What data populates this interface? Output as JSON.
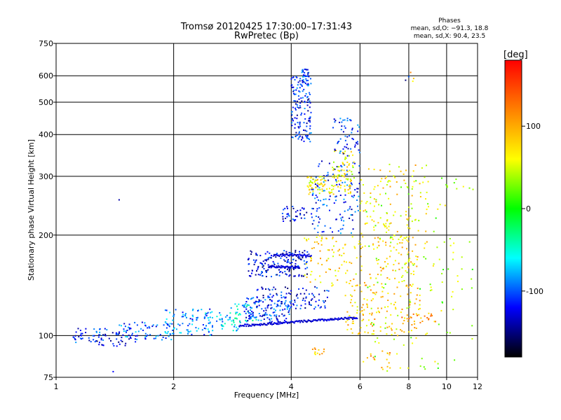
{
  "chart_data": {
    "type": "scatter",
    "title": "Tromsø 20120425 17:30:00–17:31:43",
    "subtitle": "RwPretec (Bp)",
    "xlabel": "Frequency [MHz]",
    "ylabel": "Stationary phase Virtual Height [km]",
    "x_scale": "log",
    "y_scale": "log",
    "xlim": [
      1,
      12
    ],
    "ylim": [
      75,
      750
    ],
    "grid": true,
    "x_ticks": [
      1,
      2,
      4,
      6,
      8,
      10,
      12
    ],
    "y_ticks": [
      75,
      100,
      200,
      300,
      400,
      500,
      600,
      750
    ],
    "stats_title": "Phases",
    "stats": [
      "mean, sd,O:  −91.3, 18.8",
      "mean, sd,X:  90.4, 23.5"
    ],
    "colorbar": {
      "label": "[deg]",
      "range": [
        -180,
        180
      ],
      "ticks": [
        100,
        0,
        -100
      ],
      "stops": [
        "#ff0000",
        "#ff8000",
        "#ffff00",
        "#00ff00",
        "#00ffff",
        "#0000ff",
        "#000000"
      ]
    },
    "clusters": [
      {
        "f": [
          0.97,
          1.0
        ],
        "h": [
          94,
          99
        ],
        "phase": -70,
        "n": 3
      },
      {
        "f": [
          1.1,
          1.35
        ],
        "h": [
          95,
          105
        ],
        "phase": -110,
        "n": 40
      },
      {
        "f": [
          1.25,
          1.6
        ],
        "h": [
          93,
          103
        ],
        "phase": -130,
        "n": 35
      },
      {
        "f": [
          1.4,
          2.0
        ],
        "h": [
          97,
          110
        ],
        "phase": -100,
        "n": 70
      },
      {
        "f": [
          1.9,
          2.5
        ],
        "h": [
          100,
          120
        ],
        "phase": -95,
        "n": 80
      },
      {
        "f": [
          2.4,
          3.0
        ],
        "h": [
          103,
          118
        ],
        "phase": -70,
        "n": 60
      },
      {
        "f": [
          2.8,
          3.3
        ],
        "h": [
          108,
          125
        ],
        "phase": -60,
        "n": 30
      },
      {
        "f": [
          3.0,
          4.0
        ],
        "h": [
          110,
          130
        ],
        "phase": -110,
        "n": 120
      },
      {
        "f": [
          3.2,
          5.0
        ],
        "h": [
          120,
          140
        ],
        "phase": -120,
        "n": 110
      },
      {
        "f": [
          3.1,
          4.4
        ],
        "h": [
          150,
          180
        ],
        "phase": -125,
        "n": 150
      },
      {
        "f": [
          3.8,
          4.4
        ],
        "h": [
          220,
          245
        ],
        "phase": -120,
        "n": 35
      },
      {
        "f": [
          4.0,
          4.5
        ],
        "h": [
          380,
          600
        ],
        "phase": -115,
        "n": 140
      },
      {
        "f": [
          4.25,
          4.45
        ],
        "h": [
          560,
          630
        ],
        "phase": -110,
        "n": 30
      },
      {
        "f": [
          4.5,
          6.0
        ],
        "h": [
          200,
          340
        ],
        "phase": -110,
        "n": 130
      },
      {
        "f": [
          4.4,
          5.7
        ],
        "h": [
          265,
          300
        ],
        "phase": 70,
        "n": 90
      },
      {
        "f": [
          5.1,
          5.8
        ],
        "h": [
          290,
          360
        ],
        "phase": 60,
        "n": 50
      },
      {
        "f": [
          5.1,
          6.0
        ],
        "h": [
          340,
          450
        ],
        "phase": -115,
        "n": 55
      },
      {
        "f": [
          4.3,
          8.5
        ],
        "h": [
          140,
          200
        ],
        "phase": 80,
        "n": 170
      },
      {
        "f": [
          5.5,
          8.6
        ],
        "h": [
          100,
          140
        ],
        "phase": 85,
        "n": 120
      },
      {
        "f": [
          6.0,
          9.0
        ],
        "h": [
          180,
          330
        ],
        "phase": 75,
        "n": 110
      },
      {
        "f": [
          6.0,
          11.8
        ],
        "h": [
          78,
          300
        ],
        "phase": 40,
        "n": 170
      },
      {
        "f": [
          4.5,
          4.9
        ],
        "h": [
          87,
          92
        ],
        "phase": 90,
        "n": 12
      },
      {
        "f": [
          6.2,
          7.2
        ],
        "h": [
          80,
          90
        ],
        "phase": 100,
        "n": 15
      },
      {
        "f": [
          7.6,
          9.4
        ],
        "h": [
          108,
          116
        ],
        "phase": 110,
        "n": 25
      },
      {
        "f": [
          1.45,
          1.45
        ],
        "h": [
          255,
          255
        ],
        "phase": -120,
        "n": 1
      },
      {
        "f": [
          1.4,
          1.4
        ],
        "h": [
          78,
          78
        ],
        "phase": -100,
        "n": 1
      },
      {
        "f": [
          8.0,
          8.4
        ],
        "h": [
          560,
          660
        ],
        "phase": 90,
        "n": 3
      },
      {
        "f": [
          7.8,
          8.0
        ],
        "h": [
          580,
          600
        ],
        "phase": -120,
        "n": 2
      }
    ],
    "trace_lines": [
      {
        "f": [
          2.95,
          5.9
        ],
        "h0": 107,
        "h1": 113,
        "phase": -130,
        "n": 160
      },
      {
        "f": [
          3.5,
          4.2
        ],
        "h0": 161,
        "h1": 160,
        "phase": -130,
        "n": 50
      },
      {
        "f": [
          3.6,
          4.5
        ],
        "h0": 174,
        "h1": 174,
        "phase": -130,
        "n": 50
      }
    ]
  }
}
